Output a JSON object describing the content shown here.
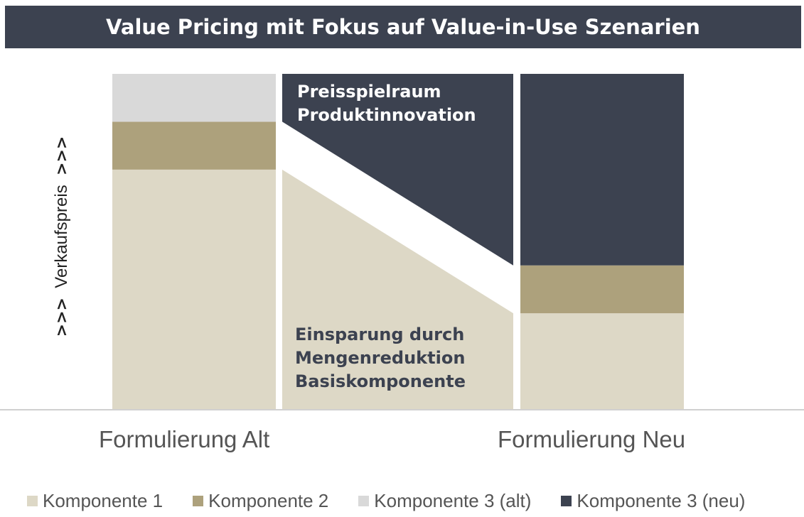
{
  "chart_data": {
    "type": "bar",
    "title": "Value Pricing mit Fokus auf Value-in-Use Szenarien",
    "ylabel": "Verkaufspreis",
    "ylabel_arrows": ">>>",
    "categories": [
      "Formulierung Alt",
      "Formulierung Neu"
    ],
    "series": [
      {
        "name": "Komponente 1",
        "color": "#ddd8c6",
        "values": [
          70,
          28
        ]
      },
      {
        "name": "Komponente 2",
        "color": "#ada17c",
        "values": [
          14,
          14
        ]
      },
      {
        "name": "Komponente 3 (alt)",
        "color": "#d9d9d9",
        "values": [
          14,
          0
        ]
      },
      {
        "name": "Komponente 3 (neu)",
        "color": "#3c4250",
        "values": [
          0,
          56
        ]
      }
    ],
    "annotations": [
      {
        "lines": [
          "Preisspielraum",
          "Produktinnovation"
        ],
        "color": "#ffffff"
      },
      {
        "lines": [
          "Einsparung durch",
          "Mengenreduktion",
          "Basiskomponente"
        ],
        "color": "#3c4250"
      }
    ],
    "bridge": {
      "upper": {
        "from": 84,
        "to": 42,
        "color": "#3c4250"
      },
      "lower": {
        "from": 70,
        "to": 28,
        "color": "#ddd8c6"
      }
    },
    "ylim": [
      0,
      98
    ],
    "grid": false,
    "legend_position": "bottom"
  }
}
